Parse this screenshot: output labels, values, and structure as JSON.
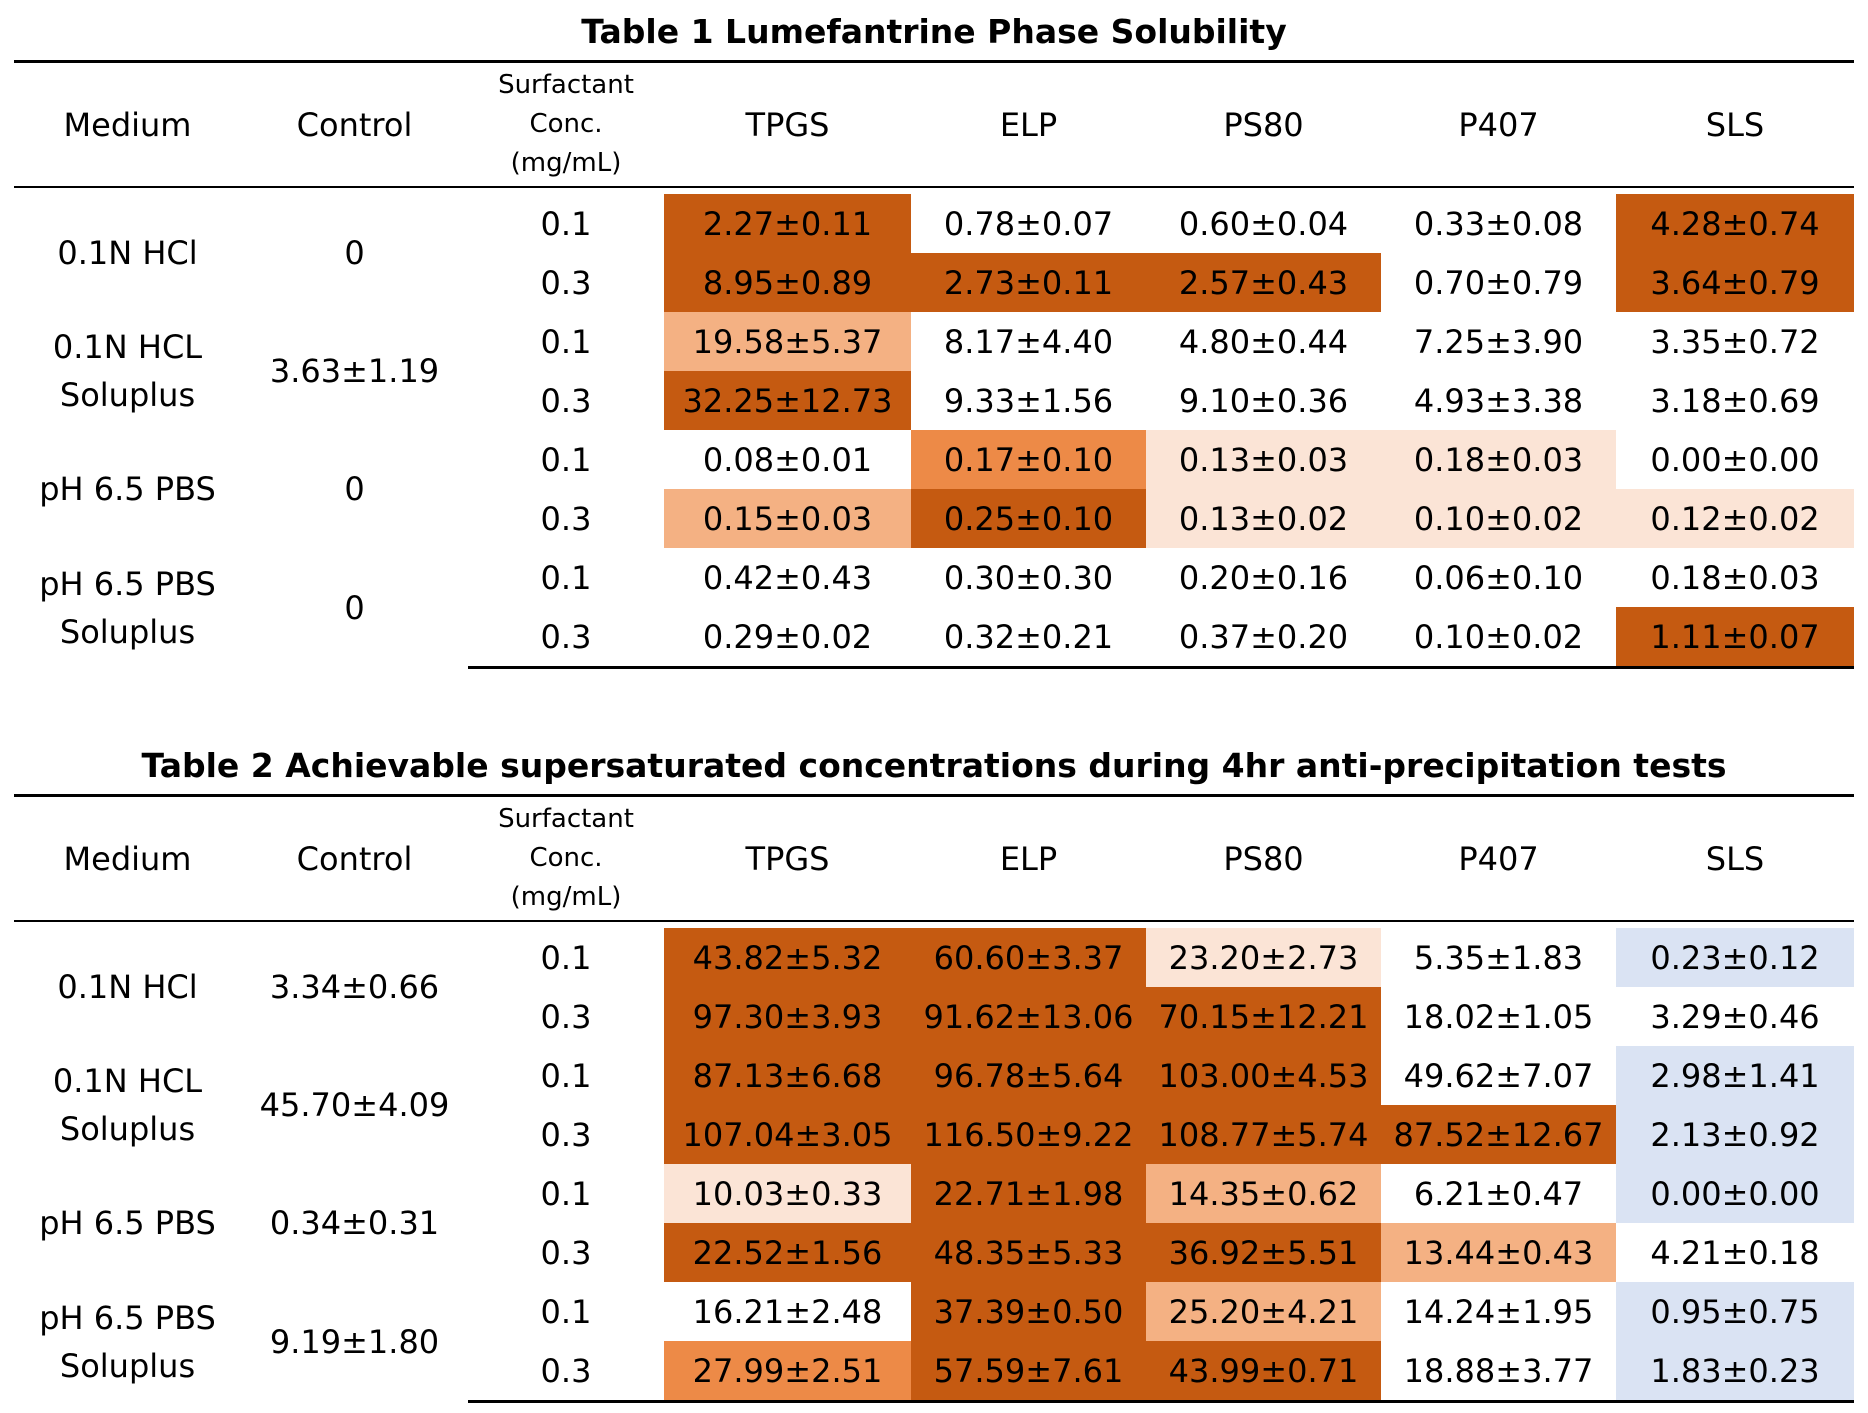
{
  "colors": {
    "dark": "#c55a11",
    "medium": "#ed8a47",
    "light": "#f4b183",
    "pale": "#fbe4d6",
    "blue": "#dae3f3",
    "none": "#ffffff"
  },
  "tables": [
    {
      "title": "Table 1 Lumefantrine Phase Solubility",
      "headers": {
        "medium": "Medium",
        "control": "Control",
        "conc": [
          "Surfactant",
          "Conc.",
          "(mg/mL)"
        ],
        "surfactants": [
          "TPGS",
          "ELP",
          "PS80",
          "P407",
          "SLS"
        ]
      },
      "groups": [
        {
          "medium": [
            "0.1N HCl"
          ],
          "control": "0",
          "rows": [
            {
              "conc": "0.1",
              "cells": [
                {
                  "v": "2.27±0.11",
                  "c": "dark"
                },
                {
                  "v": "0.78±0.07",
                  "c": "none"
                },
                {
                  "v": "0.60±0.04",
                  "c": "none"
                },
                {
                  "v": "0.33±0.08",
                  "c": "none"
                },
                {
                  "v": "4.28±0.74",
                  "c": "dark"
                }
              ]
            },
            {
              "conc": "0.3",
              "cells": [
                {
                  "v": "8.95±0.89",
                  "c": "dark"
                },
                {
                  "v": "2.73±0.11",
                  "c": "dark"
                },
                {
                  "v": "2.57±0.43",
                  "c": "dark"
                },
                {
                  "v": "0.70±0.79",
                  "c": "none"
                },
                {
                  "v": "3.64±0.79",
                  "c": "dark"
                }
              ]
            }
          ]
        },
        {
          "medium": [
            "0.1N HCL",
            "Soluplus"
          ],
          "control": "3.63±1.19",
          "rows": [
            {
              "conc": "0.1",
              "cells": [
                {
                  "v": "19.58±5.37",
                  "c": "light"
                },
                {
                  "v": "8.17±4.40",
                  "c": "none"
                },
                {
                  "v": "4.80±0.44",
                  "c": "none"
                },
                {
                  "v": "7.25±3.90",
                  "c": "none"
                },
                {
                  "v": "3.35±0.72",
                  "c": "none"
                }
              ]
            },
            {
              "conc": "0.3",
              "cells": [
                {
                  "v": "32.25±12.73",
                  "c": "dark"
                },
                {
                  "v": "9.33±1.56",
                  "c": "none"
                },
                {
                  "v": "9.10±0.36",
                  "c": "none"
                },
                {
                  "v": "4.93±3.38",
                  "c": "none"
                },
                {
                  "v": "3.18±0.69",
                  "c": "none"
                }
              ]
            }
          ]
        },
        {
          "medium": [
            "pH 6.5 PBS"
          ],
          "control": "0",
          "rows": [
            {
              "conc": "0.1",
              "cells": [
                {
                  "v": "0.08±0.01",
                  "c": "none"
                },
                {
                  "v": "0.17±0.10",
                  "c": "medium"
                },
                {
                  "v": "0.13±0.03",
                  "c": "pale"
                },
                {
                  "v": "0.18±0.03",
                  "c": "pale"
                },
                {
                  "v": "0.00±0.00",
                  "c": "none"
                }
              ]
            },
            {
              "conc": "0.3",
              "cells": [
                {
                  "v": "0.15±0.03",
                  "c": "light"
                },
                {
                  "v": "0.25±0.10",
                  "c": "dark"
                },
                {
                  "v": "0.13±0.02",
                  "c": "pale"
                },
                {
                  "v": "0.10±0.02",
                  "c": "pale"
                },
                {
                  "v": "0.12±0.02",
                  "c": "pale"
                }
              ]
            }
          ]
        },
        {
          "medium": [
            "pH 6.5 PBS",
            "Soluplus"
          ],
          "control": "0",
          "rows": [
            {
              "conc": "0.1",
              "cells": [
                {
                  "v": "0.42±0.43",
                  "c": "none"
                },
                {
                  "v": "0.30±0.30",
                  "c": "none"
                },
                {
                  "v": "0.20±0.16",
                  "c": "none"
                },
                {
                  "v": "0.06±0.10",
                  "c": "none"
                },
                {
                  "v": "0.18±0.03",
                  "c": "none"
                }
              ]
            },
            {
              "conc": "0.3",
              "cells": [
                {
                  "v": "0.29±0.02",
                  "c": "none"
                },
                {
                  "v": "0.32±0.21",
                  "c": "none"
                },
                {
                  "v": "0.37±0.20",
                  "c": "none"
                },
                {
                  "v": "0.10±0.02",
                  "c": "none"
                },
                {
                  "v": "1.11±0.07",
                  "c": "dark"
                }
              ]
            }
          ]
        }
      ]
    },
    {
      "title": "Table 2 Achievable supersaturated concentrations during 4hr anti-precipitation tests",
      "headers": {
        "medium": "Medium",
        "control": "Control",
        "conc": [
          "Surfactant",
          "Conc.",
          "(mg/mL)"
        ],
        "surfactants": [
          "TPGS",
          "ELP",
          "PS80",
          "P407",
          "SLS"
        ]
      },
      "groups": [
        {
          "medium": [
            "0.1N HCl"
          ],
          "control": "3.34±0.66",
          "rows": [
            {
              "conc": "0.1",
              "cells": [
                {
                  "v": "43.82±5.32",
                  "c": "dark"
                },
                {
                  "v": "60.60±3.37",
                  "c": "dark"
                },
                {
                  "v": "23.20±2.73",
                  "c": "pale"
                },
                {
                  "v": "5.35±1.83",
                  "c": "none"
                },
                {
                  "v": "0.23±0.12",
                  "c": "blue"
                }
              ]
            },
            {
              "conc": "0.3",
              "cells": [
                {
                  "v": "97.30±3.93",
                  "c": "dark"
                },
                {
                  "v": "91.62±13.06",
                  "c": "dark"
                },
                {
                  "v": "70.15±12.21",
                  "c": "dark"
                },
                {
                  "v": "18.02±1.05",
                  "c": "none"
                },
                {
                  "v": "3.29±0.46",
                  "c": "none"
                }
              ]
            }
          ]
        },
        {
          "medium": [
            "0.1N HCL",
            "Soluplus"
          ],
          "control": "45.70±4.09",
          "rows": [
            {
              "conc": "0.1",
              "cells": [
                {
                  "v": "87.13±6.68",
                  "c": "dark"
                },
                {
                  "v": "96.78±5.64",
                  "c": "dark"
                },
                {
                  "v": "103.00±4.53",
                  "c": "dark"
                },
                {
                  "v": "49.62±7.07",
                  "c": "none"
                },
                {
                  "v": "2.98±1.41",
                  "c": "blue"
                }
              ]
            },
            {
              "conc": "0.3",
              "cells": [
                {
                  "v": "107.04±3.05",
                  "c": "dark"
                },
                {
                  "v": "116.50±9.22",
                  "c": "dark"
                },
                {
                  "v": "108.77±5.74",
                  "c": "dark"
                },
                {
                  "v": "87.52±12.67",
                  "c": "dark"
                },
                {
                  "v": "2.13±0.92",
                  "c": "blue"
                }
              ]
            }
          ]
        },
        {
          "medium": [
            "pH 6.5 PBS"
          ],
          "control": "0.34±0.31",
          "rows": [
            {
              "conc": "0.1",
              "cells": [
                {
                  "v": "10.03±0.33",
                  "c": "pale"
                },
                {
                  "v": "22.71±1.98",
                  "c": "dark"
                },
                {
                  "v": "14.35±0.62",
                  "c": "light"
                },
                {
                  "v": "6.21±0.47",
                  "c": "none"
                },
                {
                  "v": "0.00±0.00",
                  "c": "blue"
                }
              ]
            },
            {
              "conc": "0.3",
              "cells": [
                {
                  "v": "22.52±1.56",
                  "c": "dark"
                },
                {
                  "v": "48.35±5.33",
                  "c": "dark"
                },
                {
                  "v": "36.92±5.51",
                  "c": "dark"
                },
                {
                  "v": "13.44±0.43",
                  "c": "light"
                },
                {
                  "v": "4.21±0.18",
                  "c": "none"
                }
              ]
            }
          ]
        },
        {
          "medium": [
            "pH 6.5 PBS",
            "Soluplus"
          ],
          "control": "9.19±1.80",
          "rows": [
            {
              "conc": "0.1",
              "cells": [
                {
                  "v": "16.21±2.48",
                  "c": "none"
                },
                {
                  "v": "37.39±0.50",
                  "c": "dark"
                },
                {
                  "v": "25.20±4.21",
                  "c": "light"
                },
                {
                  "v": "14.24±1.95",
                  "c": "none"
                },
                {
                  "v": "0.95±0.75",
                  "c": "blue"
                }
              ]
            },
            {
              "conc": "0.3",
              "cells": [
                {
                  "v": "27.99±2.51",
                  "c": "medium"
                },
                {
                  "v": "57.59±7.61",
                  "c": "dark"
                },
                {
                  "v": "43.99±0.71",
                  "c": "dark"
                },
                {
                  "v": "18.88±3.77",
                  "c": "none"
                },
                {
                  "v": "1.83±0.23",
                  "c": "blue"
                }
              ]
            }
          ]
        }
      ]
    }
  ]
}
